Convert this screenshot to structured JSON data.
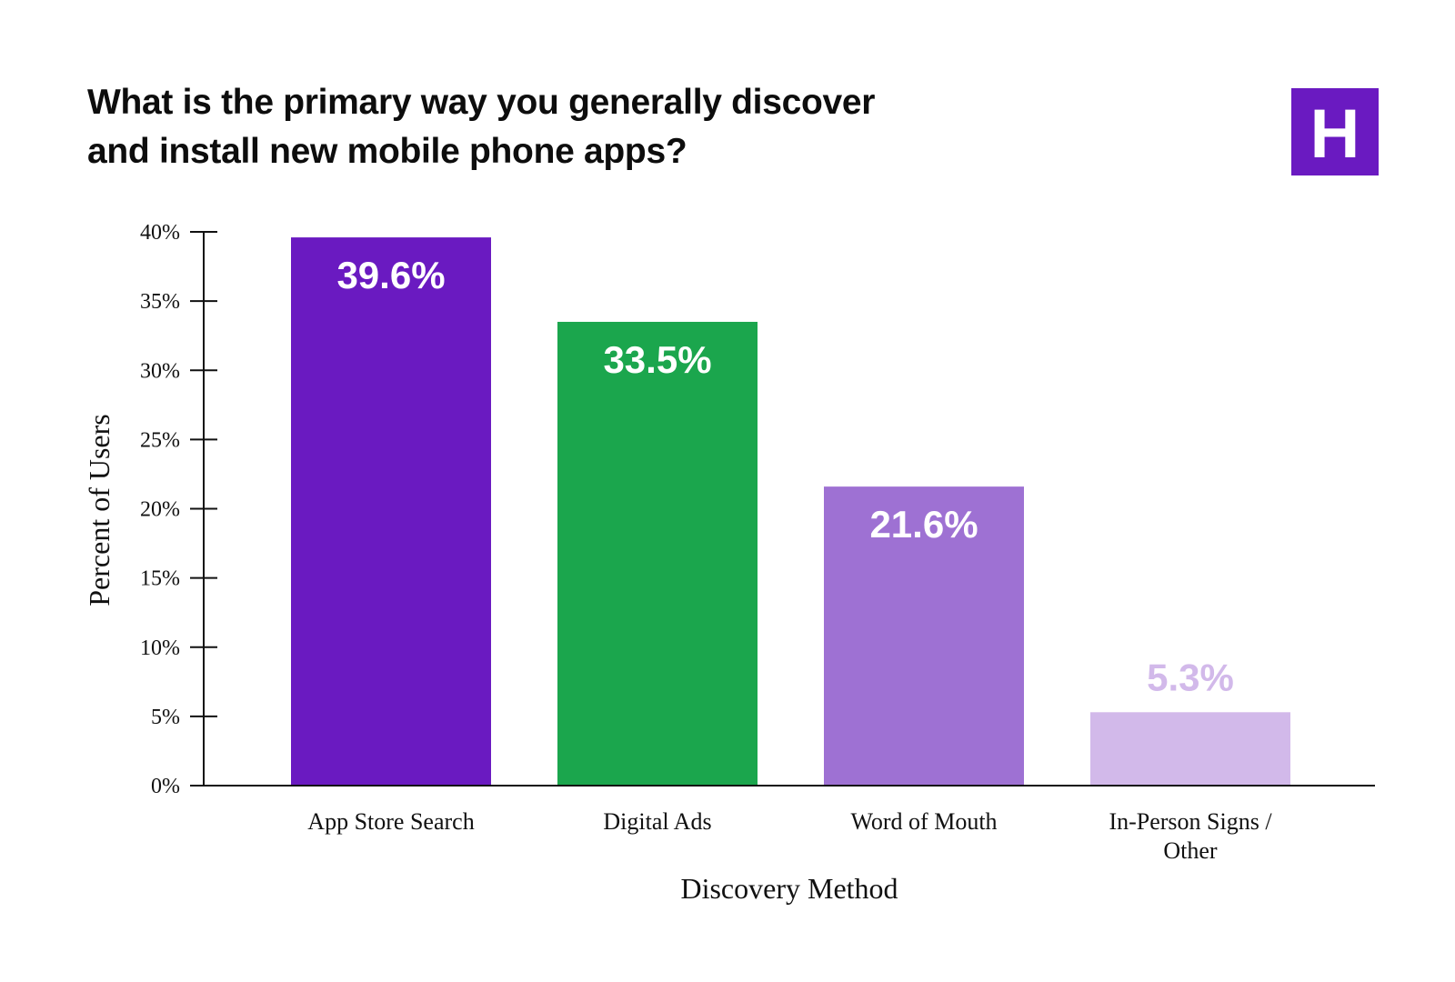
{
  "header": {
    "title_line1": "What is the primary way you generally discover",
    "title_line2": "and install new mobile phone apps?",
    "logo_letter": "H",
    "logo_color": "#6a1ac1"
  },
  "chart_data": {
    "type": "bar",
    "title": "What is the primary way you generally discover and install new mobile phone apps?",
    "xlabel": "Discovery Method",
    "ylabel": "Percent of Users",
    "ylim": [
      0,
      40
    ],
    "y_ticks": [
      0,
      5,
      10,
      15,
      20,
      25,
      30,
      35,
      40
    ],
    "y_tick_labels": [
      "0%",
      "5%",
      "10%",
      "15%",
      "20%",
      "25%",
      "30%",
      "35%",
      "40%"
    ],
    "grid": false,
    "legend": "none",
    "categories": [
      [
        "App Store Search"
      ],
      [
        "Digital Ads"
      ],
      [
        "Word of Mouth"
      ],
      [
        "In-Person Signs /",
        "Other"
      ]
    ],
    "values": [
      39.6,
      33.5,
      21.6,
      5.3
    ],
    "value_labels": [
      "39.6%",
      "33.5%",
      "21.6%",
      "5.3%"
    ],
    "bar_colors": [
      "#6a1ac1",
      "#1ba64d",
      "#9e71d3",
      "#d2b9ea"
    ],
    "label_colors": [
      "#ffffff",
      "#ffffff",
      "#ffffff",
      "#d2b9ea"
    ],
    "label_positions": [
      "inside",
      "inside",
      "inside",
      "above"
    ]
  }
}
